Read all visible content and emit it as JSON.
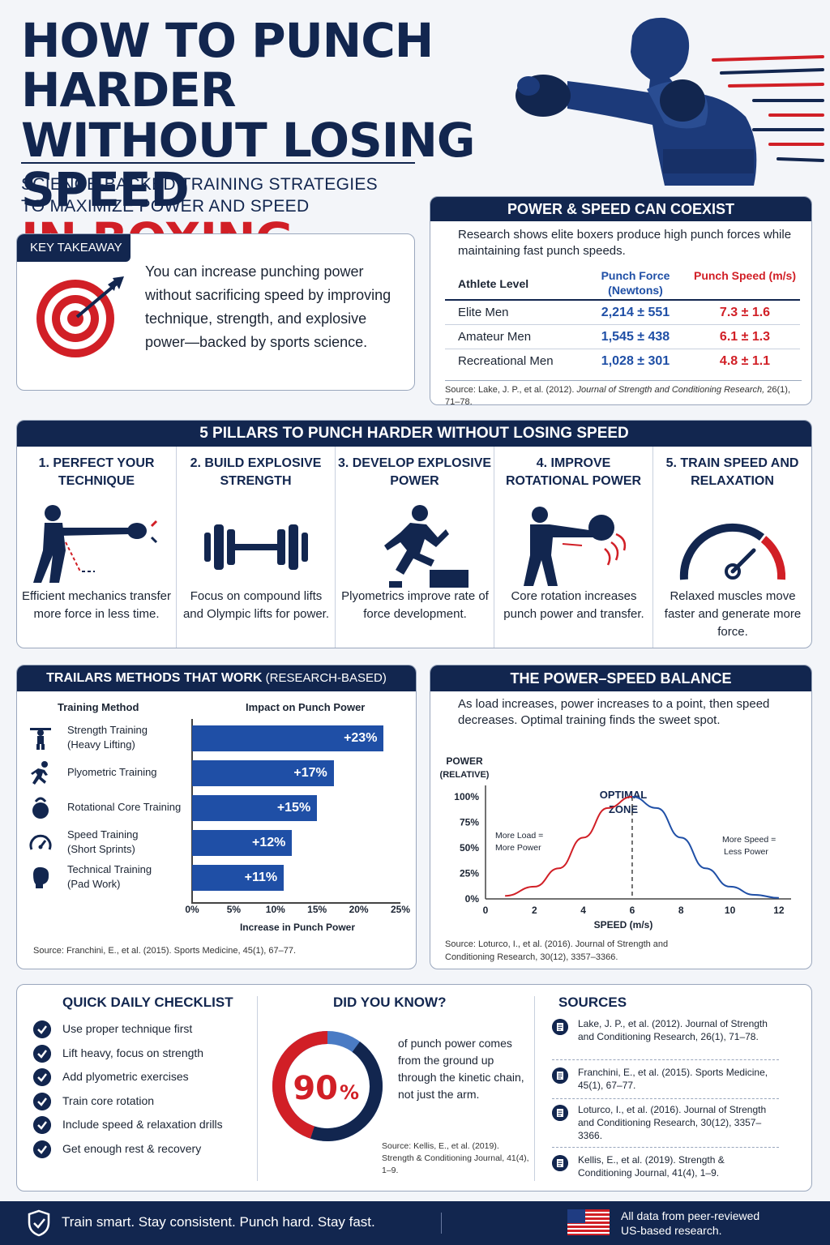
{
  "header": {
    "title_line1": "HOW TO PUNCH HARDER",
    "title_line2": "WITHOUT LOSING SPEED",
    "title_line3": "IN BOXING",
    "subtitle_line1": "SCIENCE-BACKED TRAINING STRATEGIES",
    "subtitle_line2": "TO MAXIMIZE POWER AND SPEED"
  },
  "key_takeaway": {
    "label": "KEY TAKEAWAY",
    "text": "You can increase punching power without sacrificing speed by improving technique, strength, and explosive power—backed by sports science."
  },
  "coexist": {
    "heading": "POWER & SPEED CAN COEXIST",
    "intro": "Research shows elite boxers produce high punch forces while maintaining fast punch speeds.",
    "columns": [
      "Athlete Level",
      "Punch Force (Newtons)",
      "Punch Speed (m/s)"
    ],
    "rows": [
      {
        "level": "Elite Men",
        "force": "2,214 ± 551",
        "speed": "7.3 ± 1.6"
      },
      {
        "level": "Amateur Men",
        "force": "1,545 ± 438",
        "speed": "6.1 ± 1.3"
      },
      {
        "level": "Recreational Men",
        "force": "1,028 ± 301",
        "speed": "4.8 ± 1.1"
      }
    ],
    "source_prefix": "Source: Lake, J. P., et al. (2012). ",
    "source_journal": "Journal of Strength and Conditioning Research,",
    "source_suffix": " 26(1), 71–78."
  },
  "pillars": {
    "heading": "5 PILLARS TO PUNCH HARDER WITHOUT LOSING SPEED",
    "items": [
      {
        "title": "1. PERFECT YOUR TECHNIQUE",
        "text": "Efficient mechanics transfer more force in less time.",
        "icon": "boxer-punch-icon"
      },
      {
        "title": "2. BUILD EXPLOSIVE STRENGTH",
        "text": "Focus on compound lifts and Olympic lifts for power.",
        "icon": "barbell-icon"
      },
      {
        "title": "3. DEVELOP EXPLOSIVE POWER",
        "text": "Plyometrics improve rate of force development.",
        "icon": "box-jump-icon"
      },
      {
        "title": "4. IMPROVE ROTATIONAL POWER",
        "text": "Core rotation increases punch power and transfer.",
        "icon": "medicine-ball-throw-icon"
      },
      {
        "title": "5. TRAIN SPEED AND RELAXATION",
        "text": "Relaxed muscles move faster and generate more force.",
        "icon": "speedometer-icon"
      }
    ]
  },
  "training_methods": {
    "heading": "TRAILARS METHODS THAT WORK",
    "heading_suffix": " (RESEARCH-BASED)",
    "col_method": "Training Method",
    "col_impact": "Impact on Punch Power",
    "x_label": "Increase in Punch Power",
    "source": "Source: Franchini, E., et al. (2015). Sports Medicine, 45(1), 67–77.",
    "chart_data": {
      "type": "bar",
      "orientation": "horizontal",
      "categories": [
        "Strength Training (Heavy Lifting)",
        "Plyometric Training",
        "Rotational Core Training",
        "Speed Training (Short Sprints)",
        "Technical Training (Pad Work)"
      ],
      "values": [
        23,
        17,
        15,
        12,
        11
      ],
      "value_labels": [
        "+23%",
        "+17%",
        "+15%",
        "+12%",
        "+11%"
      ],
      "xlim": [
        0,
        25
      ],
      "x_ticks": [
        "0%",
        "5%",
        "10%",
        "15%",
        "20%",
        "25%"
      ],
      "color": "#1f4fa6"
    },
    "rows": [
      {
        "line1": "Strength Training",
        "line2": "(Heavy Lifting)",
        "icon": "weightlifter-icon"
      },
      {
        "line1": "Plyometric Training",
        "line2": "",
        "icon": "runner-icon"
      },
      {
        "line1": "Rotational Core Training",
        "line2": "",
        "icon": "kettlebell-icon"
      },
      {
        "line1": "Speed Training",
        "line2": "(Short Sprints)",
        "icon": "stopwatch-icon"
      },
      {
        "line1": "Technical Training",
        "line2": "(Pad Work)",
        "icon": "boxing-glove-icon"
      }
    ]
  },
  "balance": {
    "heading": "THE POWER–SPEED BALANCE",
    "intro": "As load increases, power increases to a point, then speed decreases. Optimal training finds the sweet spot.",
    "y_label_1": "POWER",
    "y_label_2": "(RELATIVE)",
    "x_label": "SPEED (m/s)",
    "optimal_1": "OPTIMAL",
    "optimal_2": "ZONE",
    "left_note_1": "More Load =",
    "left_note_2": "More Power",
    "right_note_1": "More Speed =",
    "right_note_2": "Less Power",
    "source_1": "Source: Loturco, I., et al. (2016). Journal of Strength and",
    "source_2": "Conditioning Research, 30(12), 3357–3366.",
    "chart_data": {
      "type": "line",
      "x_ticks": [
        "0",
        "2",
        "4",
        "6",
        "8",
        "10",
        "12"
      ],
      "y_ticks": [
        "0%",
        "25%",
        "50%",
        "75%",
        "100%"
      ],
      "xlim": [
        0,
        12.5
      ],
      "ylim": [
        0,
        100
      ],
      "peak_x": 6,
      "series": [
        {
          "x": [
            0.8,
            2,
            3,
            4,
            5,
            6,
            7,
            8,
            9,
            10,
            11,
            12
          ],
          "y": [
            3,
            12,
            30,
            60,
            89,
            100,
            89,
            60,
            30,
            12,
            4,
            1
          ]
        }
      ],
      "colors": {
        "rising": "#d11f26",
        "falling": "#1f4fa6"
      }
    }
  },
  "checklist": {
    "heading": "QUICK DAILY CHECKLIST",
    "items": [
      "Use proper technique first",
      "Lift heavy, focus on strength",
      "Add plyometric exercises",
      "Train core rotation",
      "Include speed & relaxation drills",
      "Get enough rest & recovery"
    ]
  },
  "did_you_know": {
    "heading": "DID YOU KNOW?",
    "number": "90",
    "unit": "%",
    "percent_value": 90,
    "text": "of punch power comes from the ground up through the kinetic chain, not just the arm.",
    "source": "Source: Kellis, E., et al. (2019). Strength & Conditioning Journal, 41(4), 1–9."
  },
  "sources": {
    "heading": "SOURCES",
    "items": [
      "Lake, J. P., et al. (2012). Journal of Strength and Conditioning Research, 26(1), 71–78.",
      "Franchini, E., et al. (2015). Sports Medicine, 45(1), 67–77.",
      "Loturco, I., et al. (2016). Journal of Strength and Conditioning Research, 30(12), 3357–3366.",
      "Kellis, E., et al. (2019). Strength & Conditioning Journal, 41(4), 1–9."
    ]
  },
  "footer": {
    "tagline": "Train smart. Stay consistent. Punch hard. Stay fast.",
    "note_1": "All data from peer-reviewed",
    "note_2": "US-based research."
  },
  "colors": {
    "navy": "#12264f",
    "red": "#d11f26",
    "blue": "#1f4fa6"
  }
}
